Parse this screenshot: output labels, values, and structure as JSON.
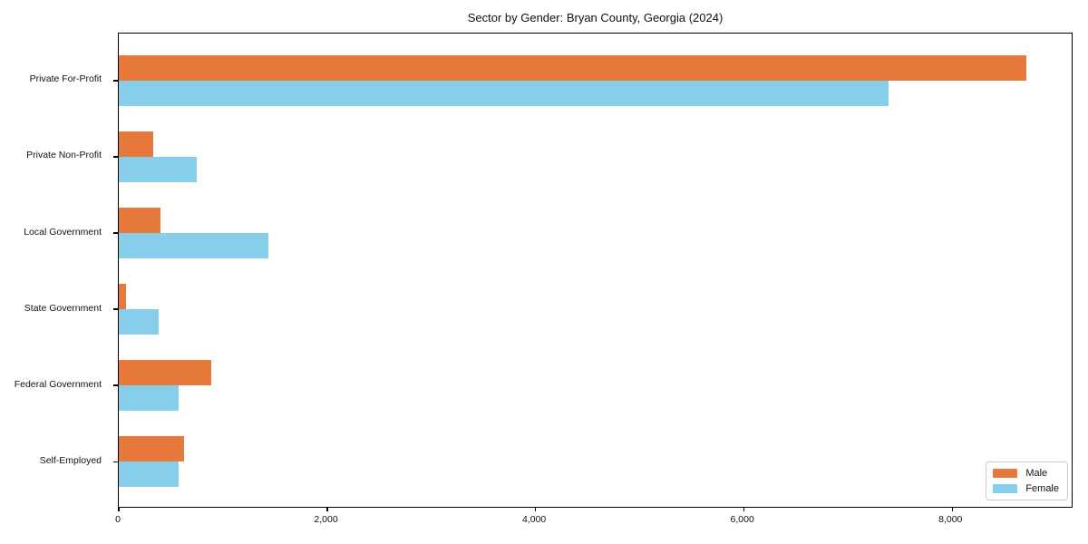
{
  "chart_data": {
    "type": "bar",
    "orientation": "horizontal",
    "title": "Sector by Gender: Bryan County, Georgia (2024)",
    "categories": [
      "Private For-Profit",
      "Private Non-Profit",
      "Local Government",
      "State Government",
      "Federal Government",
      "Self-Employed"
    ],
    "series": [
      {
        "name": "Male",
        "color": "#E8793D",
        "values": [
          8710,
          330,
          400,
          70,
          890,
          630
        ]
      },
      {
        "name": "Female",
        "color": "#87CEEB",
        "values": [
          7390,
          745,
          1440,
          380,
          570,
          570
        ]
      }
    ],
    "xlabel": "",
    "ylabel": "",
    "xlim": [
      0,
      9146
    ],
    "x_ticks": [
      0,
      2000,
      4000,
      6000,
      8000
    ],
    "x_tick_labels": [
      "0",
      "2,000",
      "4,000",
      "6,000",
      "8,000"
    ],
    "grid": false,
    "legend": {
      "position": "lower right"
    },
    "colors": {
      "male": "#E8793D",
      "female": "#87CEEB",
      "spine": "#000000",
      "background": "#ffffff"
    }
  }
}
